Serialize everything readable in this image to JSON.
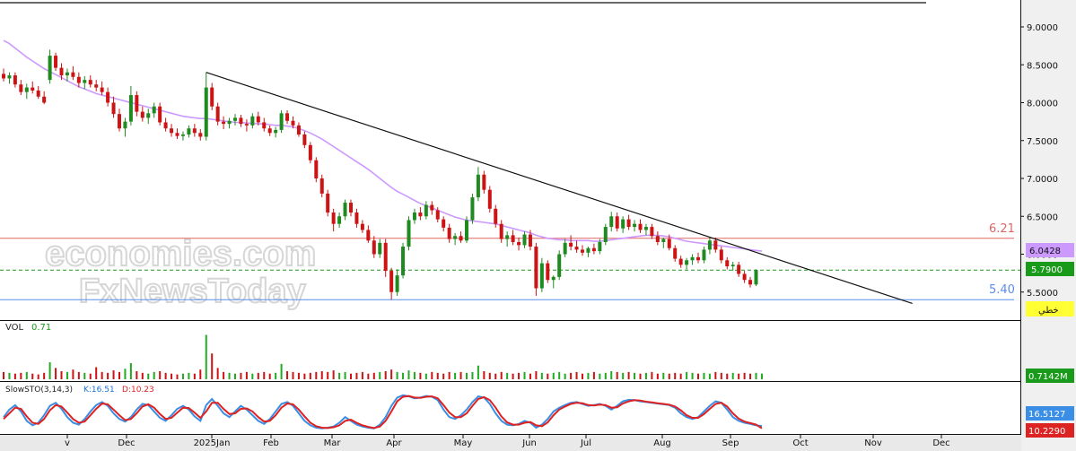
{
  "colors": {
    "background": "#ffffff",
    "frame": "#111111",
    "up_candle": "#1f8a1f",
    "down_candle": "#cc1414",
    "ma_line": "#cc99ff",
    "trendline": "#111111",
    "resistance_line": "#e06666",
    "support_line": "#5b8def",
    "current_price_line": "#1a9a1a",
    "volume_up": "#22aa22",
    "volume_down": "#cc1414",
    "sto_k": "#3a8ee6",
    "sto_d": "#dd2222",
    "watermark": "#d8d8d8"
  },
  "watermark": {
    "line1": "economies.com",
    "line2": "FxNewsToday"
  },
  "price_axis": {
    "ticks": [
      "9.0000",
      "8.5000",
      "8.0000",
      "7.5000",
      "7.0000",
      "6.5000",
      "6.0000",
      "5.5000"
    ]
  },
  "price_panel": {
    "resistance_label": "6.21",
    "support_label": "5.40",
    "ma_badge": "6.0428",
    "price_badge": "5.7900",
    "tool_badge": "خطي"
  },
  "volume_panel": {
    "label": "VOL",
    "value": "0.71",
    "badge": "0.7142M"
  },
  "sto_panel": {
    "label": "SlowSTO(3,14,3)",
    "k_text": "K:16.51",
    "d_text": "D:10.23",
    "k_badge": "16.5127",
    "d_badge": "10.2290"
  },
  "time_axis": {
    "labels": [
      "v",
      "Dec",
      "2025Jan",
      "Feb",
      "Mar",
      "Apr",
      "May",
      "Jun",
      "Jul",
      "Aug",
      "Sep",
      "Oct",
      "Nov",
      "Dec"
    ]
  },
  "chart_data": {
    "type": "candlestick",
    "ylim": [
      5.3,
      9.1
    ],
    "price_series": [
      [
        8.38,
        8.45,
        8.28,
        8.32
      ],
      [
        8.32,
        8.4,
        8.25,
        8.36
      ],
      [
        8.36,
        8.4,
        8.2,
        8.24
      ],
      [
        8.24,
        8.3,
        8.1,
        8.14
      ],
      [
        8.14,
        8.25,
        8.05,
        8.2
      ],
      [
        8.2,
        8.28,
        8.12,
        8.16
      ],
      [
        8.16,
        8.22,
        8.05,
        8.08
      ],
      [
        8.08,
        8.15,
        7.98,
        8.0
      ],
      [
        8.3,
        8.7,
        8.25,
        8.62
      ],
      [
        8.62,
        8.66,
        8.42,
        8.46
      ],
      [
        8.46,
        8.52,
        8.3,
        8.36
      ],
      [
        8.36,
        8.45,
        8.28,
        8.4
      ],
      [
        8.4,
        8.48,
        8.3,
        8.34
      ],
      [
        8.34,
        8.4,
        8.2,
        8.26
      ],
      [
        8.26,
        8.35,
        8.18,
        8.3
      ],
      [
        8.3,
        8.36,
        8.2,
        8.24
      ],
      [
        8.24,
        8.3,
        8.15,
        8.2
      ],
      [
        8.2,
        8.28,
        8.1,
        8.14
      ],
      [
        8.14,
        8.2,
        7.95,
        8.0
      ],
      [
        8.0,
        8.08,
        7.8,
        7.85
      ],
      [
        7.85,
        7.92,
        7.62,
        7.66
      ],
      [
        7.66,
        7.8,
        7.55,
        7.75
      ],
      [
        7.75,
        8.22,
        7.7,
        8.1
      ],
      [
        8.1,
        8.15,
        7.82,
        7.88
      ],
      [
        7.88,
        7.95,
        7.75,
        7.8
      ],
      [
        7.8,
        7.92,
        7.72,
        7.86
      ],
      [
        7.86,
        8.0,
        7.8,
        7.95
      ],
      [
        7.95,
        8.0,
        7.7,
        7.74
      ],
      [
        7.74,
        7.8,
        7.62,
        7.66
      ],
      [
        7.66,
        7.72,
        7.55,
        7.6
      ],
      [
        7.6,
        7.66,
        7.52,
        7.56
      ],
      [
        7.56,
        7.62,
        7.5,
        7.58
      ],
      [
        7.58,
        7.7,
        7.54,
        7.66
      ],
      [
        7.66,
        7.72,
        7.55,
        7.6
      ],
      [
        7.6,
        7.65,
        7.5,
        7.55
      ],
      [
        7.55,
        8.4,
        7.5,
        8.2
      ],
      [
        8.2,
        8.26,
        7.9,
        7.95
      ],
      [
        7.95,
        8.0,
        7.7,
        7.75
      ],
      [
        7.75,
        7.82,
        7.65,
        7.72
      ],
      [
        7.72,
        7.8,
        7.66,
        7.76
      ],
      [
        7.76,
        7.85,
        7.7,
        7.8
      ],
      [
        7.8,
        7.84,
        7.68,
        7.72
      ],
      [
        7.72,
        7.78,
        7.62,
        7.7
      ],
      [
        7.7,
        7.86,
        7.66,
        7.82
      ],
      [
        7.82,
        7.88,
        7.7,
        7.74
      ],
      [
        7.74,
        7.8,
        7.62,
        7.66
      ],
      [
        7.66,
        7.7,
        7.56,
        7.6
      ],
      [
        7.6,
        7.68,
        7.54,
        7.64
      ],
      [
        7.64,
        7.9,
        7.6,
        7.86
      ],
      [
        7.86,
        7.9,
        7.72,
        7.76
      ],
      [
        7.76,
        7.82,
        7.66,
        7.7
      ],
      [
        7.7,
        7.74,
        7.55,
        7.58
      ],
      [
        7.58,
        7.62,
        7.4,
        7.44
      ],
      [
        7.44,
        7.48,
        7.2,
        7.24
      ],
      [
        7.24,
        7.28,
        6.95,
        7.0
      ],
      [
        7.0,
        7.05,
        6.75,
        6.8
      ],
      [
        6.8,
        6.85,
        6.5,
        6.55
      ],
      [
        6.55,
        6.6,
        6.3,
        6.4
      ],
      [
        6.4,
        6.55,
        6.35,
        6.5
      ],
      [
        6.5,
        6.72,
        6.45,
        6.68
      ],
      [
        6.68,
        6.72,
        6.5,
        6.55
      ],
      [
        6.55,
        6.6,
        6.35,
        6.4
      ],
      [
        6.4,
        6.45,
        6.28,
        6.32
      ],
      [
        6.32,
        6.38,
        6.15,
        6.18
      ],
      [
        6.18,
        6.24,
        5.95,
        6.0
      ],
      [
        6.0,
        6.2,
        5.95,
        6.15
      ],
      [
        6.15,
        6.2,
        5.7,
        5.78
      ],
      [
        5.78,
        5.82,
        5.4,
        5.5
      ],
      [
        5.5,
        5.8,
        5.45,
        5.72
      ],
      [
        5.72,
        6.15,
        5.68,
        6.1
      ],
      [
        6.1,
        6.5,
        6.05,
        6.45
      ],
      [
        6.45,
        6.6,
        6.4,
        6.55
      ],
      [
        6.55,
        6.62,
        6.45,
        6.5
      ],
      [
        6.5,
        6.7,
        6.46,
        6.65
      ],
      [
        6.65,
        6.7,
        6.52,
        6.58
      ],
      [
        6.58,
        6.62,
        6.42,
        6.46
      ],
      [
        6.46,
        6.5,
        6.3,
        6.35
      ],
      [
        6.35,
        6.4,
        6.15,
        6.2
      ],
      [
        6.2,
        6.28,
        6.12,
        6.24
      ],
      [
        6.24,
        6.3,
        6.15,
        6.18
      ],
      [
        6.18,
        6.5,
        6.15,
        6.45
      ],
      [
        6.45,
        6.8,
        6.4,
        6.75
      ],
      [
        6.75,
        7.15,
        6.7,
        7.05
      ],
      [
        7.05,
        7.1,
        6.8,
        6.85
      ],
      [
        6.85,
        6.9,
        6.55,
        6.6
      ],
      [
        6.6,
        6.65,
        6.35,
        6.4
      ],
      [
        6.4,
        6.45,
        6.15,
        6.2
      ],
      [
        6.2,
        6.3,
        6.1,
        6.25
      ],
      [
        6.25,
        6.32,
        6.12,
        6.16
      ],
      [
        6.16,
        6.22,
        6.05,
        6.12
      ],
      [
        6.12,
        6.3,
        6.08,
        6.26
      ],
      [
        6.26,
        6.32,
        6.05,
        6.1
      ],
      [
        6.1,
        6.15,
        5.45,
        5.55
      ],
      [
        5.55,
        5.95,
        5.5,
        5.88
      ],
      [
        5.88,
        5.92,
        5.62,
        5.66
      ],
      [
        5.66,
        5.72,
        5.55,
        5.7
      ],
      [
        5.7,
        6.05,
        5.66,
        6.0
      ],
      [
        6.0,
        6.2,
        5.96,
        6.15
      ],
      [
        6.15,
        6.25,
        6.05,
        6.1
      ],
      [
        6.1,
        6.18,
        6.02,
        6.06
      ],
      [
        6.06,
        6.12,
        5.98,
        6.02
      ],
      [
        6.02,
        6.1,
        5.96,
        6.08
      ],
      [
        6.08,
        6.14,
        6.0,
        6.04
      ],
      [
        6.04,
        6.2,
        6.0,
        6.16
      ],
      [
        6.16,
        6.4,
        6.12,
        6.36
      ],
      [
        6.36,
        6.56,
        6.3,
        6.5
      ],
      [
        6.5,
        6.55,
        6.3,
        6.34
      ],
      [
        6.34,
        6.5,
        6.28,
        6.46
      ],
      [
        6.46,
        6.52,
        6.32,
        6.36
      ],
      [
        6.36,
        6.45,
        6.3,
        6.4
      ],
      [
        6.4,
        6.46,
        6.28,
        6.32
      ],
      [
        6.32,
        6.4,
        6.25,
        6.36
      ],
      [
        6.36,
        6.4,
        6.2,
        6.24
      ],
      [
        6.24,
        6.3,
        6.12,
        6.16
      ],
      [
        6.16,
        6.22,
        6.08,
        6.2
      ],
      [
        6.2,
        6.26,
        6.05,
        6.08
      ],
      [
        6.08,
        6.12,
        5.9,
        5.94
      ],
      [
        5.94,
        5.98,
        5.82,
        5.86
      ],
      [
        5.86,
        5.95,
        5.8,
        5.92
      ],
      [
        5.92,
        6.0,
        5.86,
        5.96
      ],
      [
        5.96,
        6.02,
        5.88,
        5.92
      ],
      [
        5.92,
        6.1,
        5.88,
        6.06
      ],
      [
        6.06,
        6.22,
        6.0,
        6.18
      ],
      [
        6.18,
        6.22,
        6.02,
        6.06
      ],
      [
        6.06,
        6.1,
        5.88,
        5.92
      ],
      [
        5.92,
        5.96,
        5.8,
        5.84
      ],
      [
        5.84,
        5.9,
        5.78,
        5.86
      ],
      [
        5.86,
        5.9,
        5.7,
        5.74
      ],
      [
        5.74,
        5.78,
        5.62,
        5.66
      ],
      [
        5.66,
        5.7,
        5.56,
        5.6
      ],
      [
        5.6,
        5.8,
        5.58,
        5.79
      ]
    ],
    "moving_average": [
      8.82,
      8.78,
      8.72,
      8.66,
      8.6,
      8.55,
      8.5,
      8.45,
      8.41,
      8.37,
      8.33,
      8.29,
      8.25,
      8.21,
      8.18,
      8.15,
      8.12,
      8.1,
      8.08,
      8.06,
      8.04,
      8.02,
      8.0,
      7.98,
      7.96,
      7.94,
      7.92,
      7.9,
      7.88,
      7.86,
      7.84,
      7.82,
      7.81,
      7.8,
      7.79,
      7.79,
      7.78,
      7.77,
      7.76,
      7.75,
      7.74,
      7.74,
      7.73,
      7.73,
      7.72,
      7.72,
      7.71,
      7.7,
      7.7,
      7.69,
      7.68,
      7.66,
      7.63,
      7.6,
      7.56,
      7.52,
      7.47,
      7.42,
      7.37,
      7.32,
      7.27,
      7.22,
      7.17,
      7.12,
      7.06,
      7.0,
      6.94,
      6.88,
      6.83,
      6.79,
      6.75,
      6.71,
      6.67,
      6.64,
      6.61,
      6.58,
      6.55,
      6.52,
      6.49,
      6.47,
      6.45,
      6.44,
      6.43,
      6.42,
      6.41,
      6.4,
      6.38,
      6.36,
      6.34,
      6.32,
      6.3,
      6.28,
      6.25,
      6.23,
      6.21,
      6.2,
      6.19,
      6.19,
      6.18,
      6.18,
      6.18,
      6.18,
      6.17,
      6.17,
      6.18,
      6.19,
      6.2,
      6.21,
      6.22,
      6.23,
      6.24,
      6.25,
      6.25,
      6.25,
      6.24,
      6.23,
      6.21,
      6.19,
      6.17,
      6.16,
      6.15,
      6.14,
      6.13,
      6.12,
      6.11,
      6.1,
      6.09,
      6.08,
      6.07,
      6.06,
      6.05,
      6.04
    ],
    "trendline": {
      "start": {
        "x_index": 35,
        "y": 8.4
      },
      "end": {
        "x_index": 157,
        "y": 5.35
      }
    },
    "resistance": 6.21,
    "support": 5.4,
    "current_price": 5.79,
    "volume": [
      0.9,
      0.8,
      0.7,
      0.8,
      0.9,
      0.7,
      0.6,
      0.8,
      2.1,
      1.4,
      1.0,
      0.9,
      1.2,
      0.9,
      0.8,
      0.7,
      1.5,
      0.9,
      0.8,
      1.1,
      0.9,
      1.3,
      2.0,
      1.0,
      0.8,
      0.7,
      0.9,
      1.0,
      0.8,
      0.7,
      0.6,
      0.7,
      0.8,
      0.7,
      1.2,
      5.5,
      3.2,
      1.4,
      0.9,
      0.8,
      0.7,
      0.8,
      0.9,
      0.7,
      0.8,
      0.9,
      0.7,
      0.8,
      1.9,
      1.0,
      0.9,
      0.8,
      0.7,
      0.8,
      0.9,
      1.0,
      0.9,
      1.1,
      0.8,
      0.9,
      0.7,
      0.8,
      0.9,
      0.7,
      0.8,
      0.9,
      1.0,
      1.2,
      0.9,
      0.8,
      1.1,
      0.9,
      0.8,
      0.7,
      0.9,
      0.8,
      0.7,
      0.9,
      0.8,
      0.9,
      0.8,
      0.9,
      1.7,
      1.0,
      0.8,
      0.7,
      0.9,
      0.8,
      0.7,
      0.8,
      0.9,
      0.7,
      1.0,
      0.8,
      0.7,
      0.8,
      0.9,
      0.7,
      0.8,
      0.9,
      0.7,
      0.8,
      0.9,
      0.7,
      0.8,
      1.0,
      0.9,
      0.8,
      0.9,
      0.8,
      0.7,
      0.8,
      0.9,
      0.7,
      0.8,
      0.7,
      0.8,
      0.7,
      0.9,
      0.8,
      0.7,
      0.8,
      0.7,
      0.9,
      0.8,
      0.7,
      0.8,
      0.7,
      0.8,
      0.7,
      0.8,
      0.71
    ],
    "sto_k": [
      40,
      60,
      72,
      55,
      30,
      18,
      25,
      45,
      70,
      78,
      62,
      40,
      25,
      20,
      35,
      55,
      72,
      80,
      70,
      50,
      35,
      28,
      40,
      60,
      75,
      72,
      55,
      38,
      30,
      45,
      62,
      70,
      60,
      42,
      30,
      72,
      88,
      70,
      50,
      40,
      55,
      70,
      60,
      45,
      30,
      22,
      35,
      55,
      75,
      80,
      70,
      50,
      30,
      18,
      12,
      10,
      12,
      15,
      25,
      40,
      30,
      20,
      15,
      12,
      10,
      20,
      40,
      70,
      92,
      98,
      95,
      90,
      92,
      96,
      94,
      85,
      60,
      40,
      35,
      45,
      60,
      80,
      95,
      92,
      75,
      50,
      30,
      20,
      18,
      22,
      30,
      25,
      12,
      20,
      35,
      55,
      65,
      72,
      78,
      80,
      75,
      70,
      72,
      75,
      70,
      60,
      70,
      82,
      86,
      85,
      82,
      80,
      78,
      76,
      74,
      72,
      65,
      50,
      40,
      35,
      40,
      55,
      70,
      82,
      78,
      60,
      40,
      30,
      25,
      22,
      18,
      16.51
    ],
    "sto_d": [
      35,
      50,
      65,
      62,
      42,
      25,
      22,
      35,
      58,
      72,
      68,
      52,
      35,
      25,
      28,
      45,
      62,
      76,
      74,
      60,
      45,
      32,
      35,
      50,
      68,
      74,
      65,
      48,
      35,
      38,
      52,
      65,
      64,
      52,
      38,
      55,
      78,
      78,
      62,
      48,
      50,
      62,
      63,
      55,
      40,
      28,
      30,
      45,
      65,
      76,
      74,
      60,
      42,
      25,
      16,
      12,
      11,
      13,
      18,
      30,
      33,
      25,
      18,
      14,
      11,
      15,
      30,
      55,
      82,
      94,
      96,
      92,
      91,
      94,
      95,
      90,
      72,
      52,
      40,
      40,
      50,
      70,
      88,
      93,
      85,
      65,
      42,
      26,
      20,
      20,
      25,
      27,
      18,
      16,
      26,
      45,
      60,
      68,
      75,
      78,
      77,
      72,
      71,
      73,
      72,
      65,
      66,
      76,
      82,
      85,
      84,
      81,
      79,
      77,
      75,
      73,
      68,
      58,
      45,
      38,
      38,
      48,
      62,
      75,
      78,
      68,
      50,
      36,
      28,
      24,
      20,
      10.23
    ]
  }
}
